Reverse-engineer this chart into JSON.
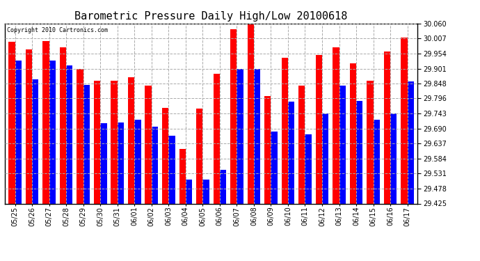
{
  "title": "Barometric Pressure Daily High/Low 20100618",
  "copyright": "Copyright 2010 Cartronics.com",
  "dates": [
    "05/25",
    "05/26",
    "05/27",
    "05/28",
    "05/29",
    "05/30",
    "05/31",
    "06/01",
    "06/02",
    "06/03",
    "06/04",
    "06/05",
    "06/06",
    "06/07",
    "06/08",
    "06/09",
    "06/10",
    "06/11",
    "06/12",
    "06/13",
    "06/14",
    "06/15",
    "06/16",
    "06/17"
  ],
  "highs": [
    29.995,
    29.968,
    29.998,
    29.975,
    29.9,
    29.858,
    29.858,
    29.87,
    29.84,
    29.762,
    29.618,
    29.76,
    29.882,
    30.04,
    30.06,
    29.805,
    29.94,
    29.84,
    29.95,
    29.975,
    29.92,
    29.858,
    29.96,
    30.01
  ],
  "lows": [
    29.93,
    29.862,
    29.93,
    29.912,
    29.844,
    29.708,
    29.712,
    29.72,
    29.695,
    29.665,
    29.51,
    29.51,
    29.543,
    29.9,
    29.9,
    29.68,
    29.785,
    29.668,
    29.742,
    29.84,
    29.788,
    29.72,
    29.742,
    29.855
  ],
  "high_color": "#FF0000",
  "low_color": "#0000FF",
  "bg_color": "#FFFFFF",
  "grid_color": "#AAAAAA",
  "ylim_min": 29.425,
  "ylim_max": 30.06,
  "yticks": [
    29.425,
    29.478,
    29.531,
    29.584,
    29.637,
    29.69,
    29.743,
    29.796,
    29.848,
    29.901,
    29.954,
    30.007,
    30.06
  ],
  "title_fontsize": 11,
  "tick_fontsize": 7,
  "copyright_fontsize": 6,
  "bar_width": 0.38
}
